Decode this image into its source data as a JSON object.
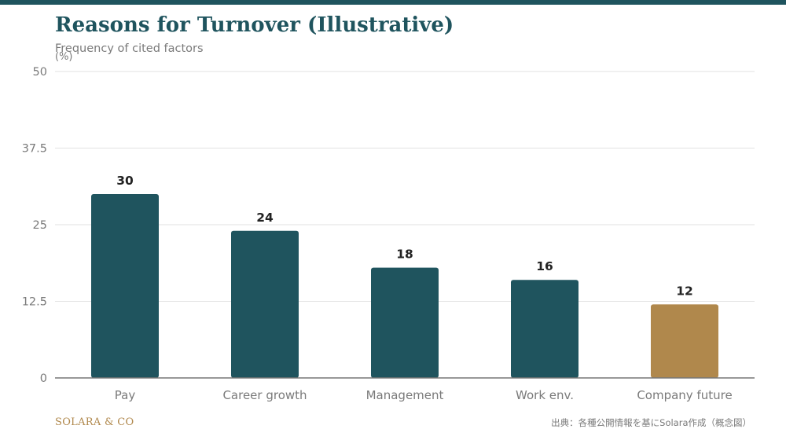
{
  "header": {
    "title": "Reasons for Turnover (Illustrative)",
    "subtitle": "Frequency of cited factors"
  },
  "footer": {
    "brand": "SOLARA & CO",
    "source": "出典：各種公開情報を基にSolara作成（概念図）"
  },
  "colors": {
    "accent": "#1f545e",
    "highlight": "#b0884c",
    "axis_text": "#7a7a7a",
    "value_label": "#222222",
    "grid": "#e2e2e2",
    "baseline": "#777777"
  },
  "chart_data": {
    "type": "bar",
    "title": "Reasons for Turnover (Illustrative)",
    "subtitle": "Frequency of cited factors",
    "xlabel": "",
    "ylabel": "(%)",
    "ylim": [
      0,
      50
    ],
    "yticks": [
      0,
      12.5,
      25,
      37.5,
      50
    ],
    "ytick_labels": [
      "0",
      "12.5",
      "25",
      "37.5",
      "50"
    ],
    "grid": true,
    "categories": [
      "Pay",
      "Career growth",
      "Management",
      "Work env.",
      "Company future"
    ],
    "values": [
      30,
      24,
      18,
      16,
      12
    ],
    "data_labels": [
      "30",
      "24",
      "18",
      "16",
      "12"
    ],
    "highlight_category": "Company future"
  }
}
